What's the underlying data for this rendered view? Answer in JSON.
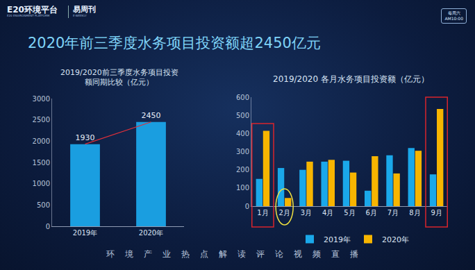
{
  "header": {
    "logo": "E20环境平台",
    "logo_subtitle": "E20 ENVIRONMENT PLATFORM",
    "brand": "易周刊",
    "brand_subtitle": "E-WEEKLY",
    "schedule_day": "每周六",
    "schedule_time": "AM10:00"
  },
  "title": "2020年前三季度水务项目投资额超2450亿元",
  "footer": "环境产业热点解读评论视频直播",
  "chart_data": [
    {
      "type": "bar",
      "title": "2019/2020前三季度水务项目投资\n额同期比较（亿元）",
      "categories": [
        "2019年",
        "2020年"
      ],
      "values": [
        1930,
        2450
      ],
      "color": "#1a9ee0",
      "ylim": [
        0,
        3000
      ],
      "yticks": [
        0,
        500,
        1000,
        1500,
        2000,
        2500,
        3000
      ],
      "grid": false,
      "data_labels": true
    },
    {
      "type": "bar",
      "title": "2019/2020 各月水务项目投资额（亿元）",
      "categories": [
        "1月",
        "2月",
        "3月",
        "4月",
        "5月",
        "6月",
        "7月",
        "8月",
        "9月"
      ],
      "series": [
        {
          "name": "2019年",
          "color": "#1aa8ea",
          "values": [
            150,
            210,
            200,
            245,
            250,
            85,
            280,
            320,
            175
          ]
        },
        {
          "name": "2020年",
          "color": "#f7b500",
          "values": [
            415,
            45,
            245,
            255,
            185,
            275,
            180,
            305,
            535
          ]
        }
      ],
      "ylim": [
        0,
        600
      ],
      "yticks": [
        0,
        100,
        200,
        300,
        400,
        500,
        600
      ],
      "grid": false,
      "legend": "bottom"
    }
  ]
}
